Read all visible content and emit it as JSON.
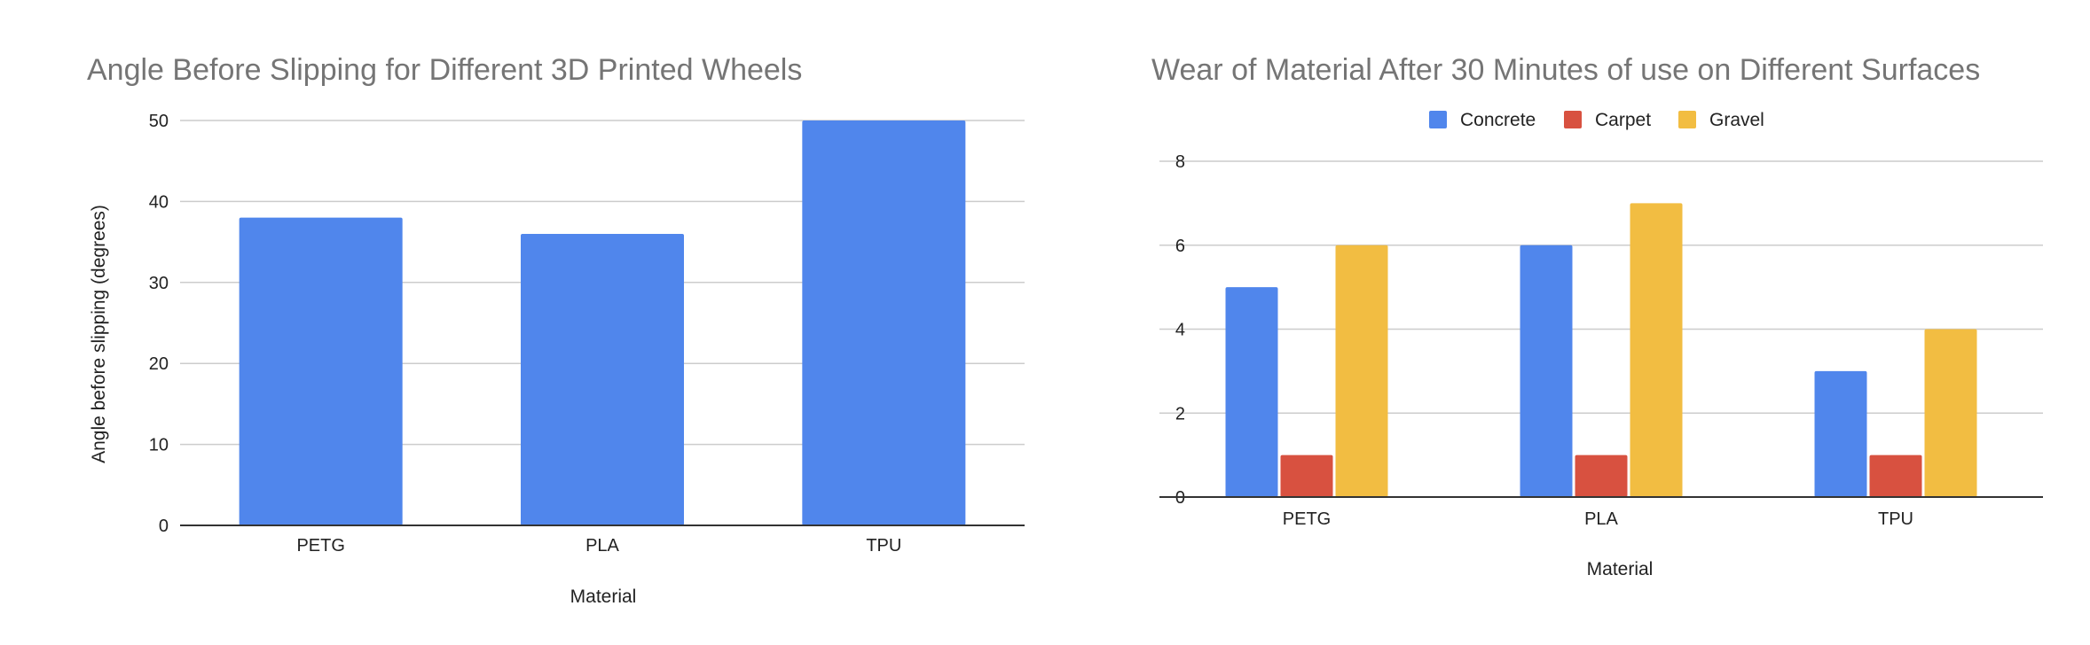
{
  "chart_data": [
    {
      "type": "bar",
      "title": "Angle Before Slipping for Different 3D Printed Wheels",
      "xlabel": "Material",
      "ylabel": "Angle before slipping (degrees)",
      "categories": [
        "PETG",
        "PLA",
        "TPU"
      ],
      "values": [
        38,
        36,
        50
      ],
      "ylim": [
        0,
        50
      ],
      "yticks": [
        0,
        10,
        20,
        30,
        40,
        50
      ],
      "grid": true,
      "legend": "none",
      "color": "#5086EC"
    },
    {
      "type": "bar",
      "title": "Wear of Material After 30 Minutes of use on Different Surfaces",
      "xlabel": "Material",
      "ylabel": "",
      "categories": [
        "PETG",
        "PLA",
        "TPU"
      ],
      "series": [
        {
          "name": "Concrete",
          "values": [
            5,
            6,
            3
          ],
          "color": "#5086EC"
        },
        {
          "name": "Carpet",
          "values": [
            1,
            1,
            1
          ],
          "color": "#D85140"
        },
        {
          "name": "Gravel",
          "values": [
            6,
            7,
            4
          ],
          "color": "#F2BD42"
        }
      ],
      "ylim": [
        0,
        8
      ],
      "yticks": [
        0,
        2,
        4,
        6,
        8
      ],
      "grid": true,
      "legend": "top"
    }
  ]
}
